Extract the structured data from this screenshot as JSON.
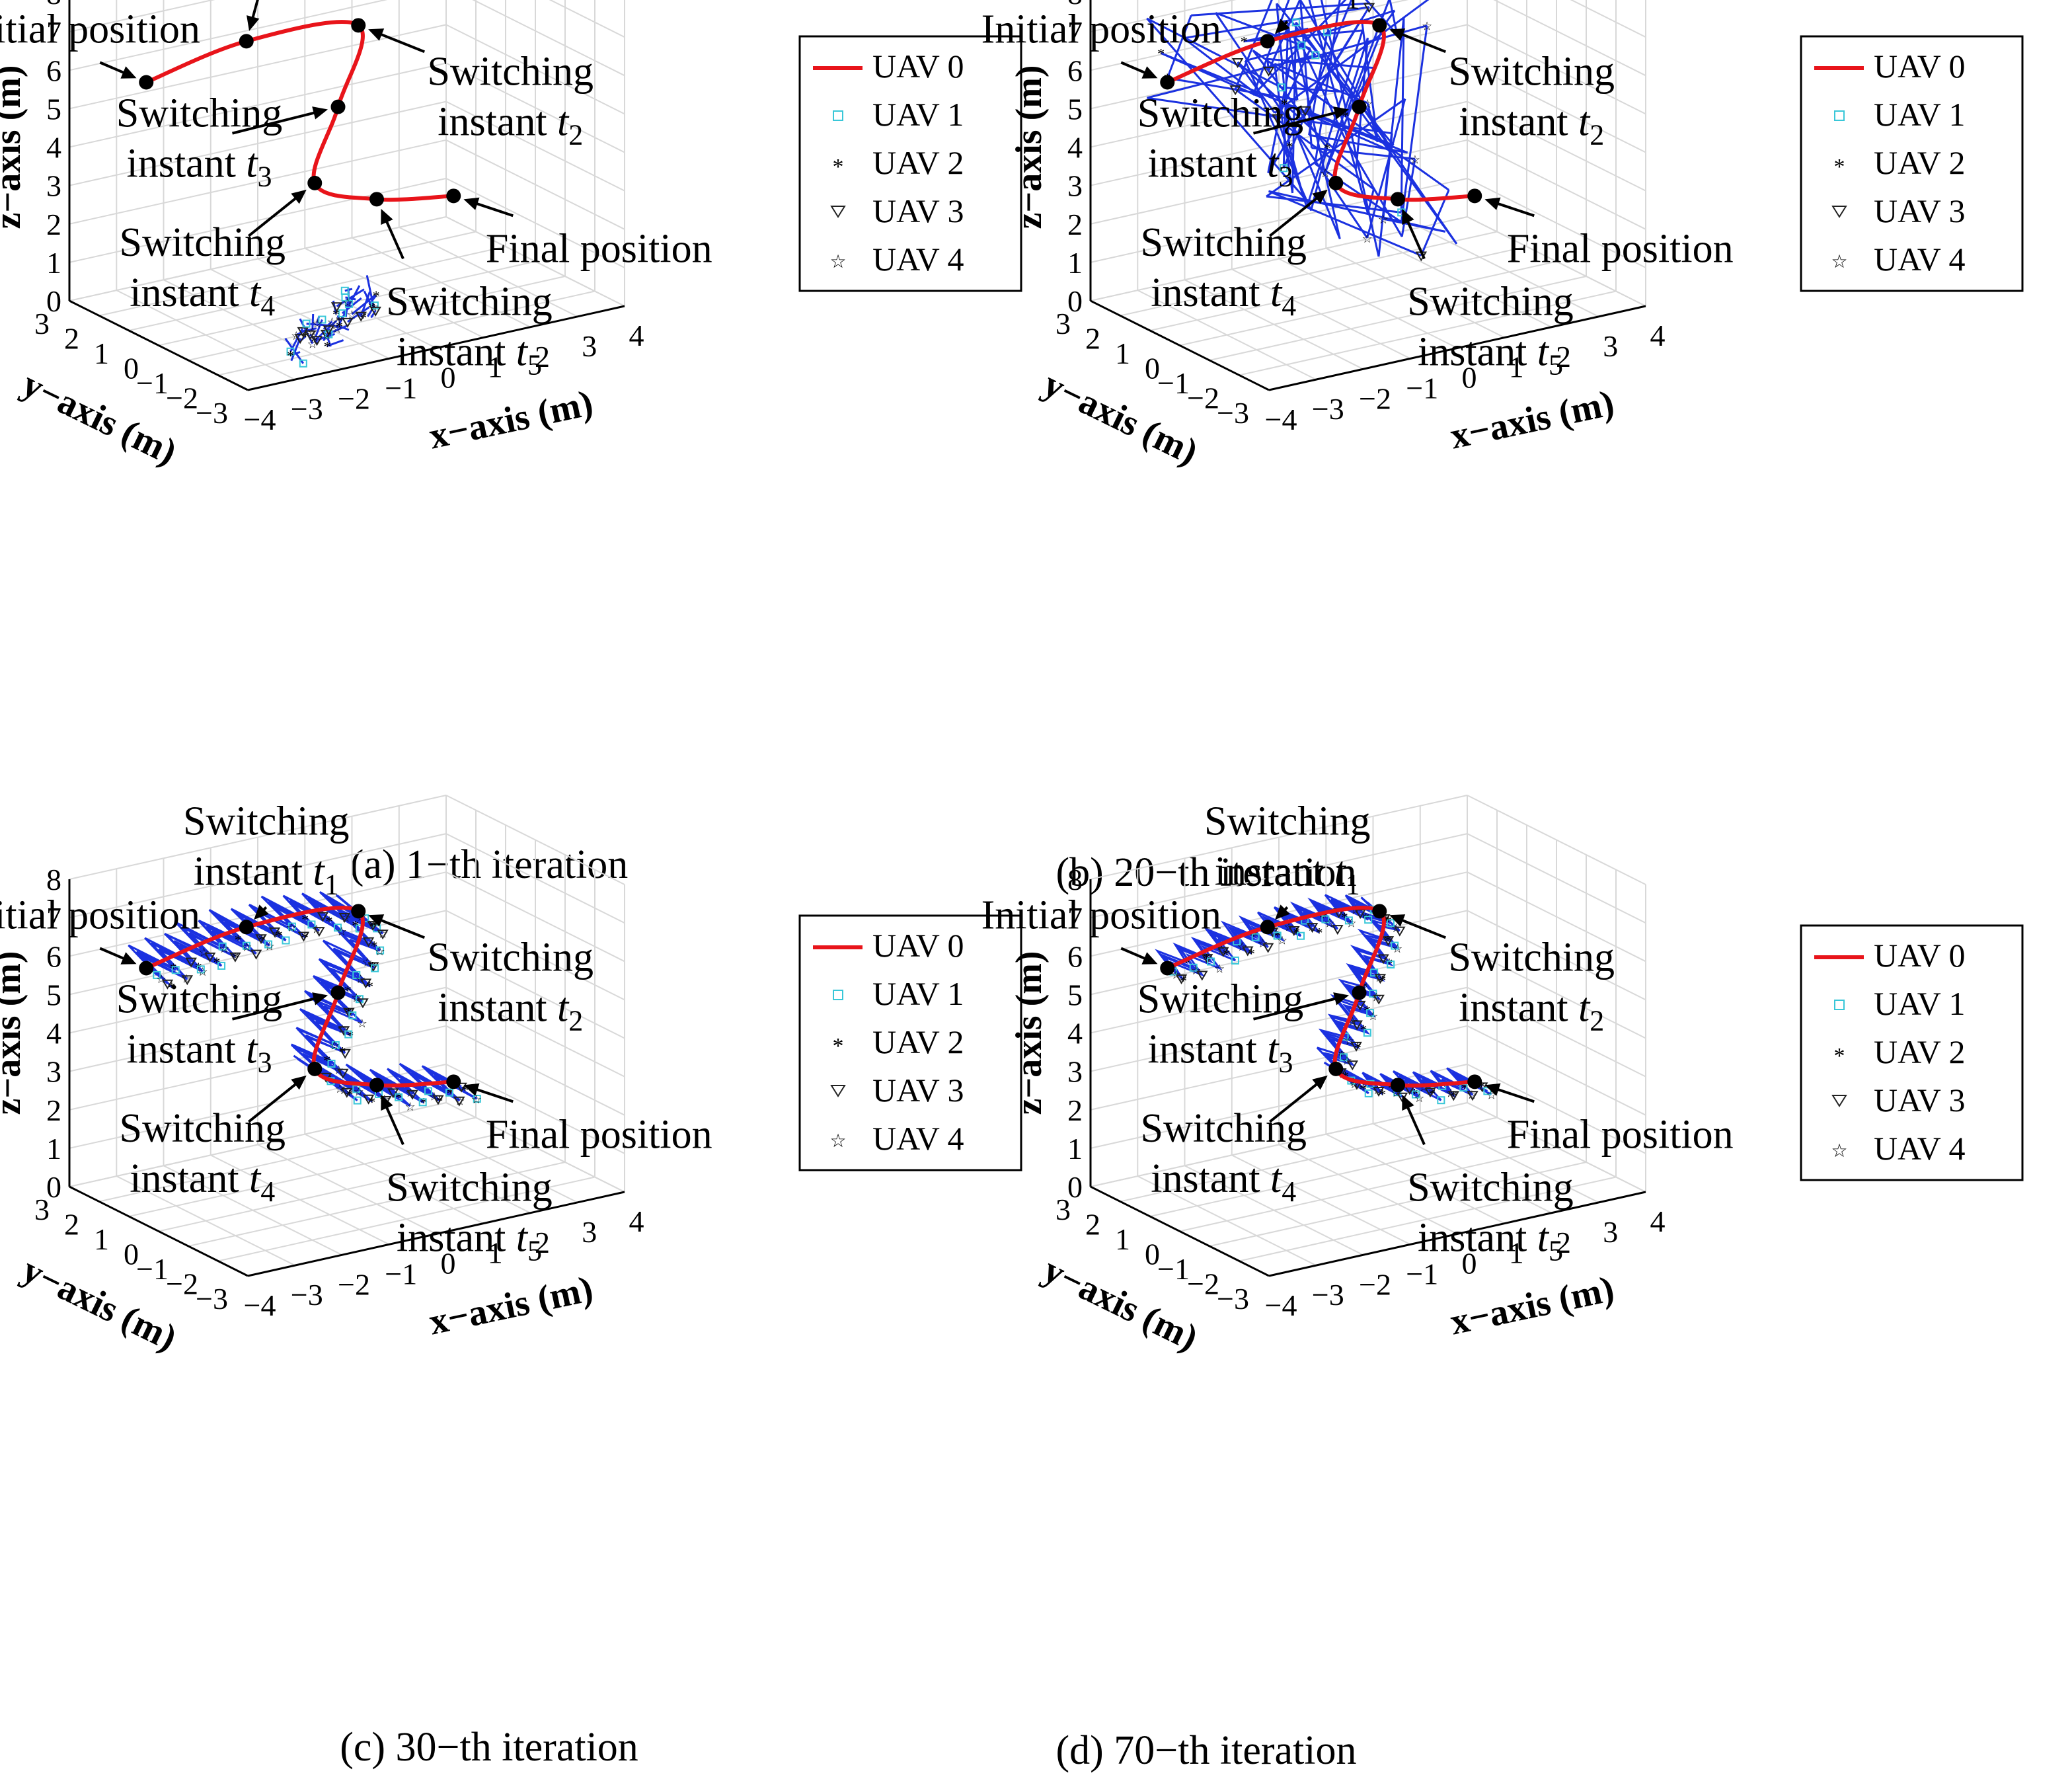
{
  "figure": {
    "legend": [
      "UAV 0",
      "UAV 1",
      "UAV 2",
      "UAV 3",
      "UAV 4"
    ],
    "axis_labels": {
      "x": "x−axis (m)",
      "y": "y−axis (m)",
      "z": "z−axis (m)"
    },
    "annotations": {
      "initial": "Initial position",
      "final": "Final position",
      "switching": "Switching",
      "switching_instant": "Switching instant",
      "instant": "instant",
      "t": "t",
      "subscripts": [
        "1",
        "2",
        "3",
        "4",
        "5"
      ]
    }
  },
  "chart_data": [
    {
      "type": "line3d",
      "caption": "(a) 1−th iteration",
      "iteration": 1,
      "xlim": [
        -4,
        4
      ],
      "ylim": [
        -3,
        3
      ],
      "zlim": [
        0,
        8
      ],
      "x_ticks": [
        "−4",
        "−3",
        "−2",
        "−1",
        "0",
        "1",
        "2",
        "3",
        "4"
      ],
      "y_ticks": [
        "−3",
        "−2",
        "−1",
        "0",
        "1",
        "2",
        "3"
      ],
      "z_ticks": [
        "0",
        "1",
        "2",
        "3",
        "4",
        "5",
        "6",
        "7",
        "8"
      ],
      "uav0_points": [
        [
          -3,
          2,
          5.8
        ],
        [
          -1,
          1.8,
          6.4
        ],
        [
          1,
          1.2,
          6.5
        ],
        [
          0,
          0.3,
          5
        ],
        [
          -1,
          -0.5,
          3.6
        ],
        [
          0,
          -1,
          3.1
        ],
        [
          1,
          -2,
          3.3
        ]
      ]
    },
    {
      "type": "line3d",
      "caption": "(b) 20−th iteration",
      "iteration": 20,
      "xlim": [
        -4,
        4
      ],
      "ylim": [
        -3,
        3
      ],
      "zlim": [
        0,
        8
      ],
      "x_ticks": [
        "−4",
        "−3",
        "−2",
        "−1",
        "0",
        "1",
        "2",
        "3",
        "4"
      ],
      "y_ticks": [
        "−3",
        "−2",
        "−1",
        "0",
        "1",
        "2",
        "3"
      ],
      "z_ticks": [
        "0",
        "1",
        "2",
        "3",
        "4",
        "5",
        "6",
        "7",
        "8"
      ],
      "uav0_points": [
        [
          -3,
          2,
          5.8
        ],
        [
          -1,
          1.8,
          6.4
        ],
        [
          1,
          1.2,
          6.5
        ],
        [
          0,
          0.3,
          5
        ],
        [
          -1,
          -0.5,
          3.6
        ],
        [
          0,
          -1,
          3.1
        ],
        [
          1,
          -2,
          3.3
        ]
      ]
    },
    {
      "type": "line3d",
      "caption": "(c) 30−th iteration",
      "iteration": 30,
      "xlim": [
        -4,
        4
      ],
      "ylim": [
        -3,
        3
      ],
      "zlim": [
        0,
        8
      ],
      "x_ticks": [
        "−4",
        "−3",
        "−2",
        "−1",
        "0",
        "1",
        "2",
        "3",
        "4"
      ],
      "y_ticks": [
        "−3",
        "−2",
        "−1",
        "0",
        "1",
        "2",
        "3"
      ],
      "z_ticks": [
        "0",
        "1",
        "2",
        "3",
        "4",
        "5",
        "6",
        "7",
        "8"
      ],
      "uav0_points": [
        [
          -3,
          2,
          5.8
        ],
        [
          -1,
          1.8,
          6.4
        ],
        [
          1,
          1.2,
          6.5
        ],
        [
          0,
          0.3,
          5
        ],
        [
          -1,
          -0.5,
          3.6
        ],
        [
          0,
          -1,
          3.1
        ],
        [
          1,
          -2,
          3.3
        ]
      ]
    },
    {
      "type": "line3d",
      "caption": "(d) 70−th iteration",
      "iteration": 70,
      "xlim": [
        -4,
        4
      ],
      "ylim": [
        -3,
        3
      ],
      "zlim": [
        0,
        8
      ],
      "x_ticks": [
        "−4",
        "−3",
        "−2",
        "−1",
        "0",
        "1",
        "2",
        "3",
        "4"
      ],
      "y_ticks": [
        "−3",
        "−2",
        "−1",
        "0",
        "1",
        "2",
        "3"
      ],
      "z_ticks": [
        "0",
        "1",
        "2",
        "3",
        "4",
        "5",
        "6",
        "7",
        "8"
      ],
      "uav0_points": [
        [
          -3,
          2,
          5.8
        ],
        [
          -1,
          1.8,
          6.4
        ],
        [
          1,
          1.2,
          6.5
        ],
        [
          0,
          0.3,
          5
        ],
        [
          -1,
          -0.5,
          3.6
        ],
        [
          0,
          -1,
          3.1
        ],
        [
          1,
          -2,
          3.3
        ]
      ]
    }
  ],
  "colors": {
    "uav0": "#e8141a",
    "uav1": "#39c7d8",
    "uav2": "#e246e6",
    "uav3": "#222222",
    "uav4": "#3ddc3d",
    "followers": "#1b31e0"
  }
}
